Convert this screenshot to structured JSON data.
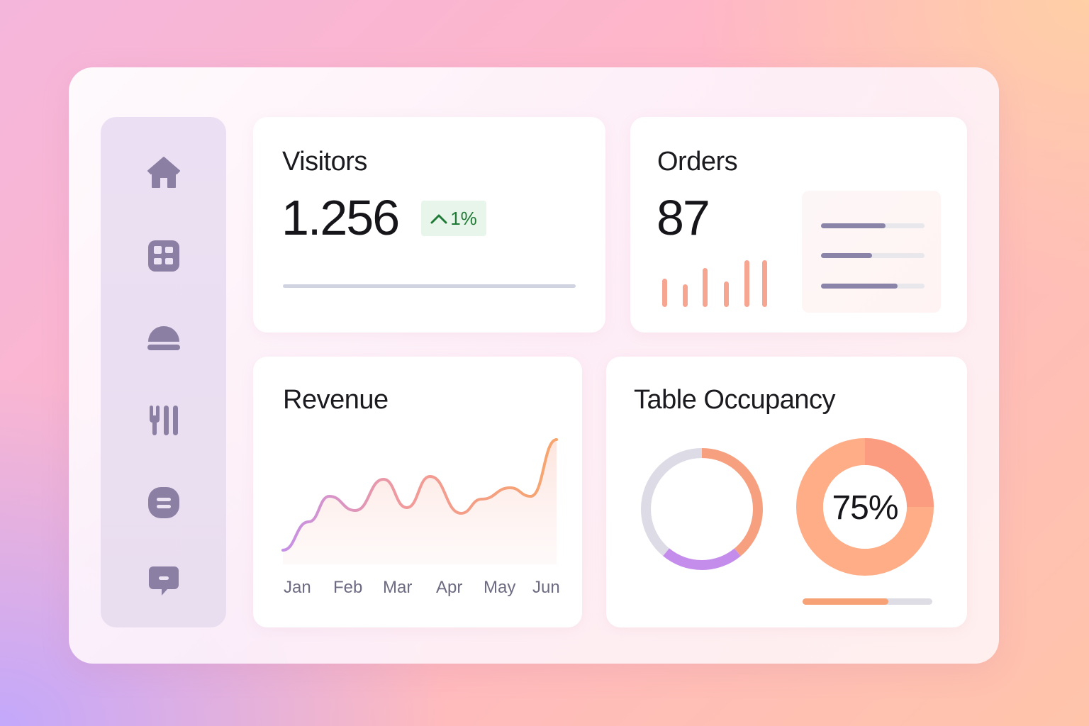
{
  "sidebar": {
    "items": [
      {
        "icon": "home-icon"
      },
      {
        "icon": "dashboard-grid-icon"
      },
      {
        "icon": "cloche-icon"
      },
      {
        "icon": "utensils-icon"
      },
      {
        "icon": "receipt-icon"
      },
      {
        "icon": "message-icon"
      }
    ]
  },
  "visitors": {
    "title": "Visitors",
    "value": "1.256",
    "change": "1%",
    "change_direction": "up"
  },
  "orders": {
    "title": "Orders",
    "value": "87",
    "mini_bars": [
      40,
      32,
      55,
      36,
      66,
      66
    ],
    "progress": [
      0.62,
      0.49,
      0.74
    ]
  },
  "revenue": {
    "title": "Revenue",
    "chart_data": {
      "type": "area",
      "categories": [
        "Jan",
        "Feb",
        "Mar",
        "Apr",
        "May",
        "Jun"
      ],
      "x": [
        0,
        0.5,
        0.9,
        1.4,
        1.95,
        2.4,
        2.85,
        3.45,
        3.85,
        4.4,
        4.8,
        5.3
      ],
      "values": [
        10,
        30,
        48,
        38,
        60,
        40,
        62,
        36,
        46,
        54,
        48,
        88
      ],
      "ylim": [
        0,
        100
      ]
    }
  },
  "occupancy": {
    "title": "Table Occupancy",
    "ring_segments": [
      {
        "name": "orange",
        "value": 0.39,
        "color": "#f7a07f"
      },
      {
        "name": "purple",
        "value": 0.22,
        "color": "#c48ceb"
      },
      {
        "name": "grey",
        "value": 0.39,
        "color": "#dcdbe6"
      }
    ],
    "donut_label": "75%",
    "donut_value": 0.75,
    "bar_value": 0.66,
    "colors": {
      "accent": "#f6a276",
      "purple": "#c48ceb"
    }
  }
}
